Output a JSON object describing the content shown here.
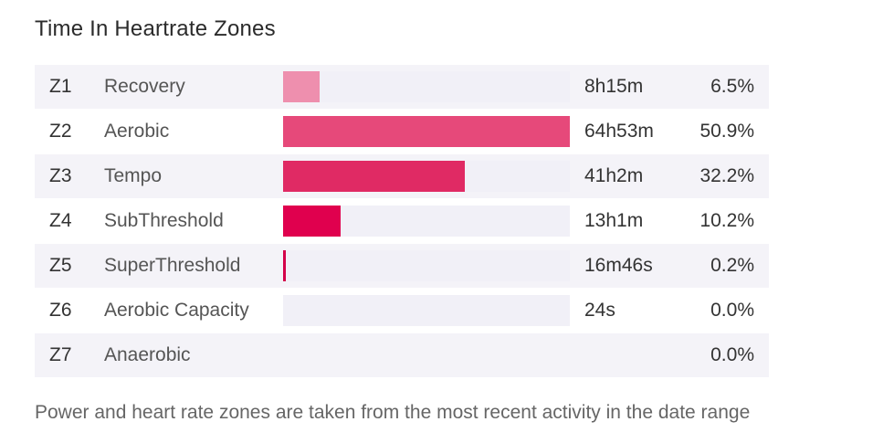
{
  "title": "Time In Heartrate Zones",
  "footnote": "Power and heart rate zones are taken from the most recent activity in the date range",
  "chart_data": {
    "type": "bar",
    "orientation": "horizontal",
    "title": "Time In Heartrate Zones",
    "value_unit": "percent",
    "xlim": [
      0,
      50.9
    ],
    "columns": [
      "zone",
      "name",
      "time",
      "percent"
    ],
    "rows": [
      {
        "zone": "Z1",
        "name": "Recovery",
        "time": "8h15m",
        "percent_label": "6.5%",
        "percent": 6.5,
        "color": "#ee8fae"
      },
      {
        "zone": "Z2",
        "name": "Aerobic",
        "time": "64h53m",
        "percent_label": "50.9%",
        "percent": 50.9,
        "color": "#e6497a"
      },
      {
        "zone": "Z3",
        "name": "Tempo",
        "time": "41h2m",
        "percent_label": "32.2%",
        "percent": 32.2,
        "color": "#e02a64"
      },
      {
        "zone": "Z4",
        "name": "SubThreshold",
        "time": "13h1m",
        "percent_label": "10.2%",
        "percent": 10.2,
        "color": "#e0004e"
      },
      {
        "zone": "Z5",
        "name": "SuperThreshold",
        "time": "16m46s",
        "percent_label": "0.2%",
        "percent": 0.2,
        "color": "#d4004a"
      },
      {
        "zone": "Z6",
        "name": "Aerobic Capacity",
        "time": "24s",
        "percent_label": "0.0%",
        "percent": 0.0,
        "color": "#c80046"
      },
      {
        "zone": "Z7",
        "name": "Anaerobic",
        "time": "",
        "percent_label": "0.0%",
        "percent": 0.0,
        "color": "#bb0042"
      }
    ]
  },
  "colors": {
    "row_stripe": "#f4f3f8",
    "bar_track": "#f1f0f7"
  }
}
